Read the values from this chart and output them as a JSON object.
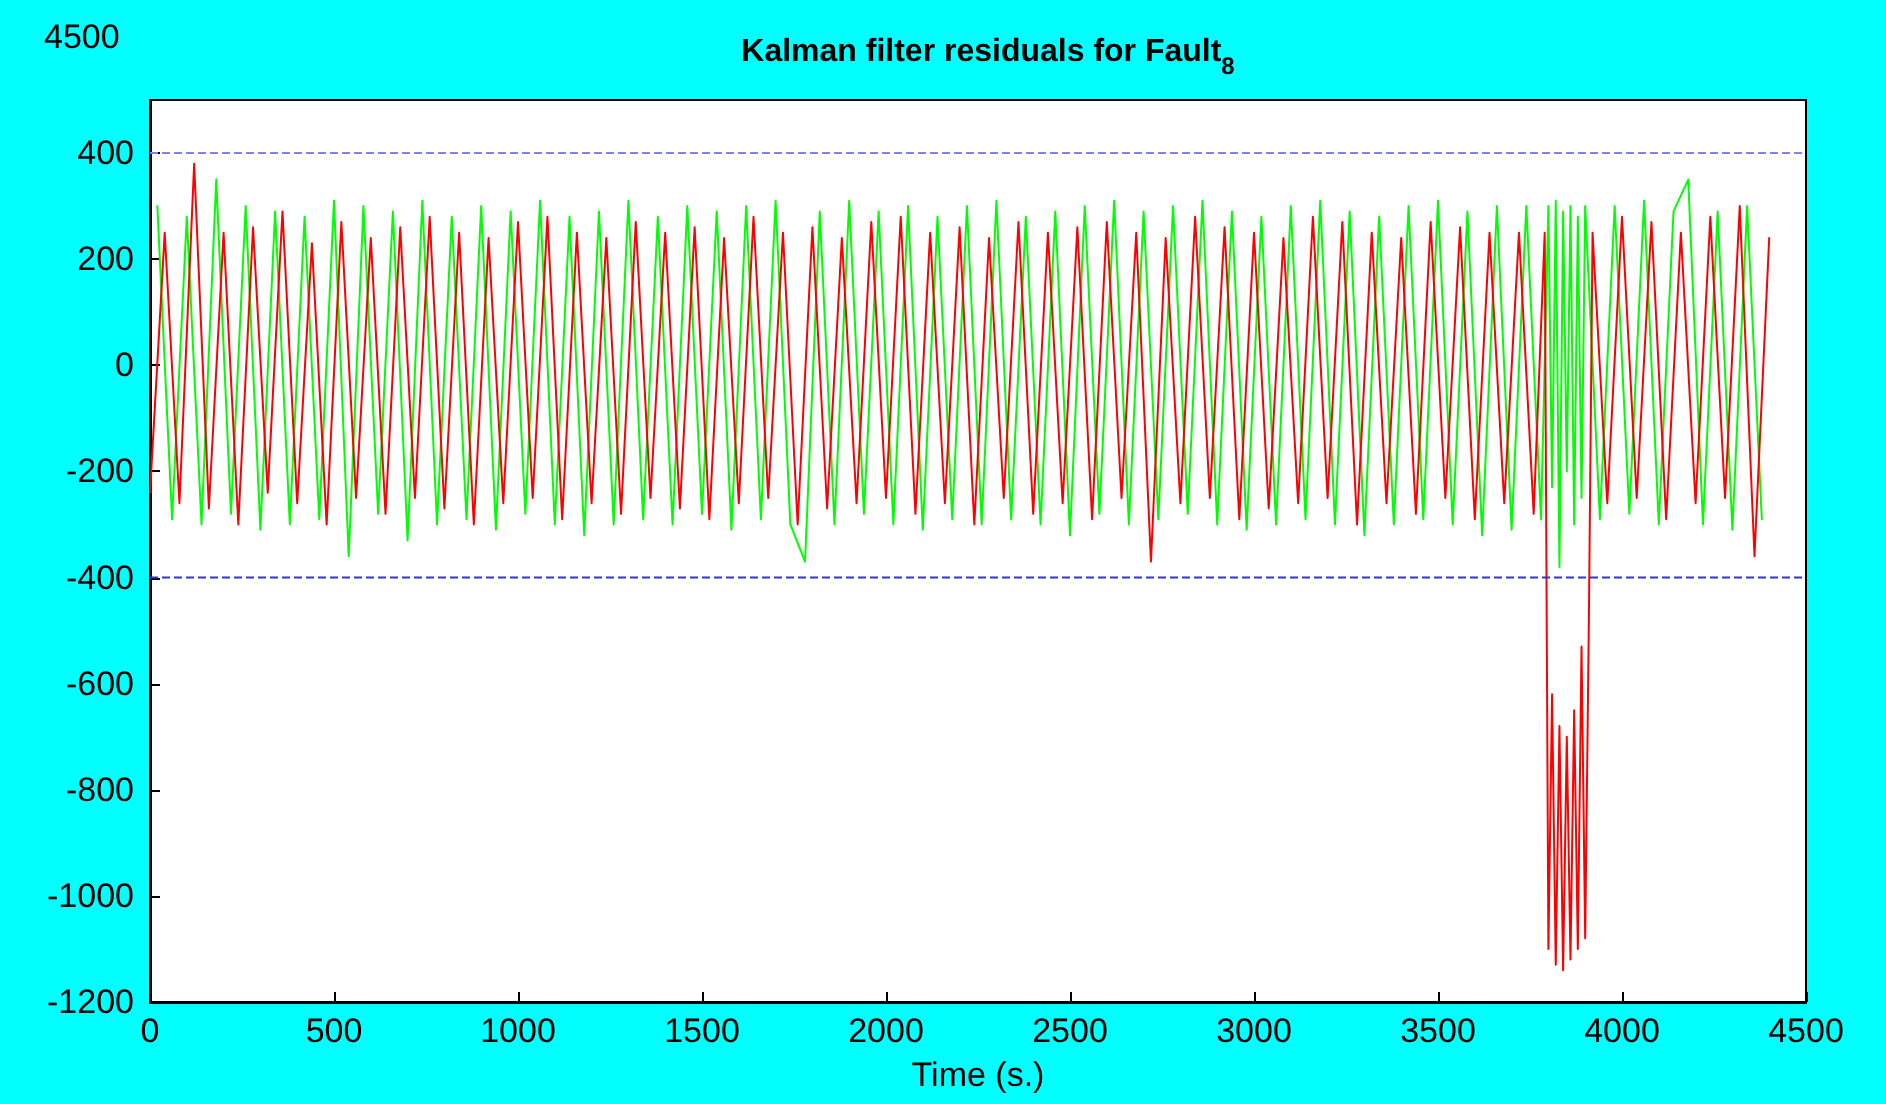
{
  "chart_data": {
    "type": "line",
    "title": "Kalman filter residuals for Fault$_{8}$",
    "xlabel": "Time (s.)",
    "annotations": [
      "4500"
    ],
    "xlim": [
      0,
      4500
    ],
    "xticks": [
      0,
      500,
      1000,
      1500,
      2000,
      2500,
      3000,
      3500,
      4000,
      4500
    ],
    "ylim": [
      -1200,
      500
    ],
    "yticks": [
      -1200,
      -1000,
      -800,
      -600,
      -400,
      -200,
      0,
      200,
      400
    ],
    "grid": false,
    "marker": "none",
    "line_style": "solid",
    "ref_lines": [
      {
        "axis": "y",
        "value": 400,
        "color": "#8080ff",
        "line_style": "dashed"
      },
      {
        "axis": "y",
        "value": -400,
        "color": "#3333cc",
        "line_style": "dashed"
      }
    ],
    "series": [
      {
        "color": "#00ff00",
        "x": [
          20,
          60,
          100,
          140,
          180,
          220,
          260,
          300,
          340,
          380,
          420,
          460,
          500,
          540,
          580,
          620,
          660,
          700,
          740,
          780,
          820,
          860,
          900,
          940,
          980,
          1020,
          1060,
          1100,
          1140,
          1180,
          1220,
          1260,
          1300,
          1340,
          1380,
          1420,
          1460,
          1500,
          1540,
          1580,
          1620,
          1660,
          1700,
          1740,
          1780,
          1820,
          1860,
          1900,
          1940,
          1980,
          2020,
          2060,
          2100,
          2140,
          2180,
          2220,
          2260,
          2300,
          2340,
          2380,
          2420,
          2460,
          2500,
          2540,
          2580,
          2620,
          2660,
          2700,
          2740,
          2780,
          2820,
          2860,
          2900,
          2940,
          2980,
          3020,
          3060,
          3100,
          3140,
          3180,
          3220,
          3260,
          3300,
          3340,
          3380,
          3420,
          3460,
          3500,
          3540,
          3580,
          3620,
          3660,
          3700,
          3740,
          3780,
          3800,
          3810,
          3820,
          3830,
          3840,
          3850,
          3860,
          3870,
          3880,
          3890,
          3900,
          3940,
          3980,
          4020,
          4060,
          4100,
          4140,
          4180,
          4220,
          4260,
          4300,
          4340,
          4380
        ],
        "values": [
          300,
          -290,
          280,
          -300,
          350,
          -280,
          300,
          -310,
          290,
          -300,
          280,
          -290,
          310,
          -360,
          300,
          -280,
          290,
          -330,
          310,
          -300,
          280,
          -290,
          300,
          -310,
          290,
          -280,
          310,
          -300,
          280,
          -320,
          290,
          -300,
          310,
          -290,
          280,
          -300,
          300,
          -280,
          290,
          -310,
          300,
          -290,
          310,
          -300,
          -370,
          290,
          -300,
          310,
          -280,
          290,
          -300,
          300,
          -310,
          280,
          -290,
          300,
          -300,
          310,
          -290,
          280,
          -300,
          290,
          -320,
          300,
          -280,
          310,
          -300,
          290,
          -290,
          300,
          -280,
          310,
          -300,
          290,
          -310,
          280,
          -300,
          300,
          -290,
          310,
          -300,
          290,
          -320,
          280,
          -300,
          300,
          -290,
          310,
          -300,
          290,
          -320,
          300,
          -310,
          300,
          -290,
          300,
          -230,
          310,
          -380,
          290,
          -200,
          300,
          -300,
          280,
          -250,
          300,
          -290,
          300,
          -280,
          310,
          -300,
          290,
          350,
          -300,
          290,
          -310,
          300,
          -290
        ]
      },
      {
        "color": "#ff0000",
        "x": [
          0,
          40,
          80,
          120,
          160,
          200,
          240,
          280,
          320,
          360,
          400,
          440,
          480,
          520,
          560,
          600,
          640,
          680,
          720,
          760,
          800,
          840,
          880,
          920,
          960,
          1000,
          1040,
          1080,
          1120,
          1160,
          1200,
          1240,
          1280,
          1320,
          1360,
          1400,
          1440,
          1480,
          1520,
          1560,
          1600,
          1640,
          1680,
          1720,
          1760,
          1800,
          1840,
          1880,
          1920,
          1960,
          2000,
          2040,
          2080,
          2120,
          2160,
          2200,
          2240,
          2280,
          2320,
          2360,
          2400,
          2440,
          2480,
          2520,
          2560,
          2600,
          2640,
          2680,
          2720,
          2760,
          2800,
          2840,
          2880,
          2920,
          2960,
          3000,
          3040,
          3080,
          3120,
          3160,
          3200,
          3240,
          3280,
          3320,
          3360,
          3400,
          3440,
          3480,
          3520,
          3560,
          3600,
          3640,
          3680,
          3720,
          3760,
          3790,
          3800,
          3810,
          3820,
          3830,
          3840,
          3850,
          3860,
          3870,
          3880,
          3890,
          3900,
          3910,
          3920,
          3960,
          4000,
          4040,
          4080,
          4120,
          4160,
          4200,
          4240,
          4280,
          4320,
          4360,
          4400
        ],
        "values": [
          -240,
          250,
          -260,
          380,
          -270,
          250,
          -300,
          260,
          -240,
          290,
          -260,
          230,
          -300,
          270,
          -250,
          240,
          -280,
          260,
          -250,
          280,
          -270,
          250,
          -300,
          240,
          -260,
          270,
          -250,
          280,
          -290,
          250,
          -260,
          240,
          -280,
          270,
          -250,
          250,
          -270,
          260,
          -290,
          240,
          -260,
          280,
          -250,
          250,
          -300,
          260,
          -270,
          240,
          -260,
          270,
          -250,
          280,
          -280,
          250,
          -260,
          260,
          -300,
          240,
          -250,
          270,
          -280,
          250,
          -260,
          260,
          -290,
          270,
          -250,
          250,
          -370,
          240,
          -260,
          280,
          -250,
          260,
          -290,
          250,
          -270,
          240,
          -260,
          280,
          -250,
          270,
          -300,
          250,
          -260,
          240,
          -280,
          270,
          -250,
          260,
          -290,
          250,
          -260,
          250,
          -280,
          250,
          -1100,
          -620,
          -1130,
          -680,
          -1140,
          -700,
          -1120,
          -650,
          -1100,
          -530,
          -1080,
          -480,
          250,
          -260,
          280,
          -250,
          270,
          -290,
          250,
          -260,
          280,
          -250,
          300,
          -360,
          240
        ]
      }
    ]
  }
}
